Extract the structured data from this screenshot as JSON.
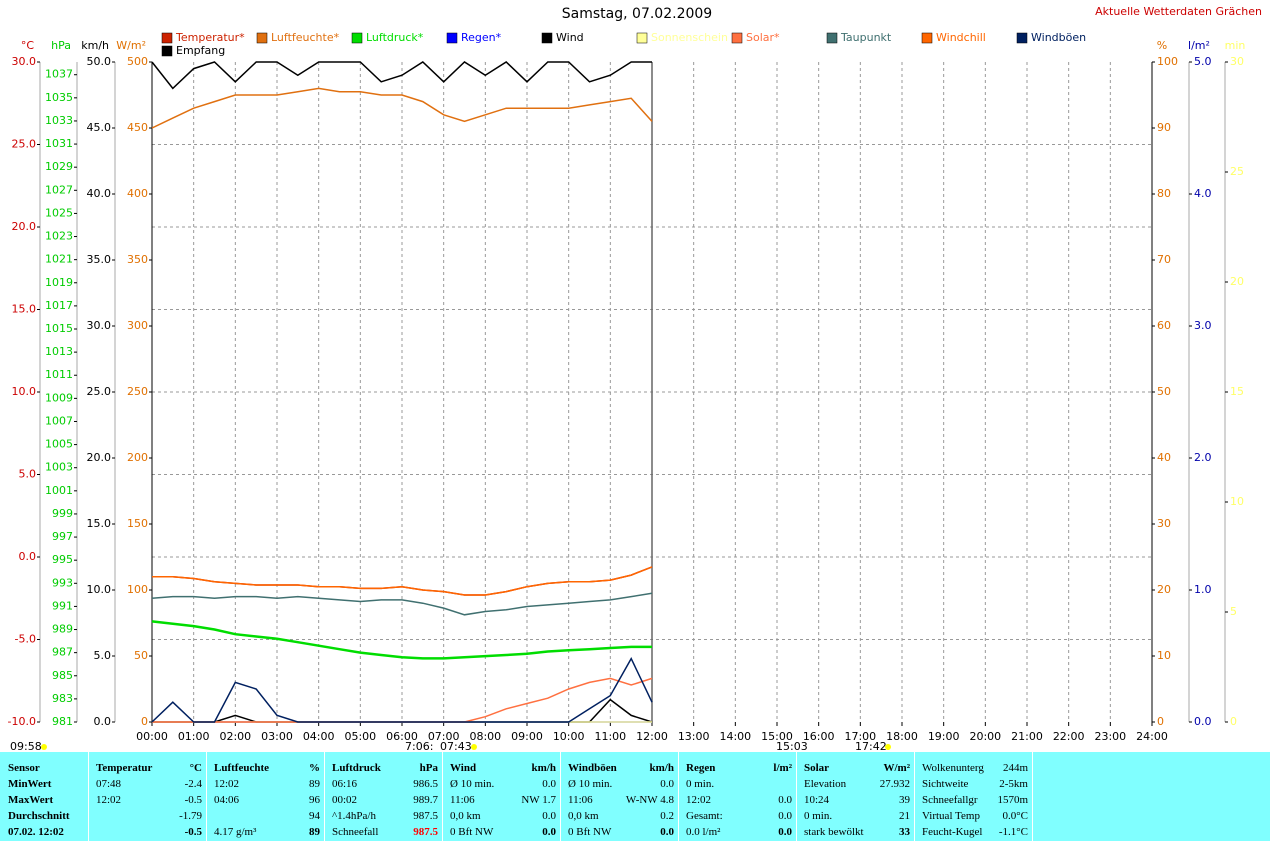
{
  "chart_data": {
    "type": "line",
    "title": "Samstag, 07.02.2009",
    "subtitle": "Aktuelle Wetterdaten Grächen",
    "xlim": [
      0,
      24
    ],
    "xticks": [
      {
        "value": 0,
        "label": "00:00"
      },
      {
        "value": 1,
        "label": "01:00"
      },
      {
        "value": 2,
        "label": "02:00"
      },
      {
        "value": 3,
        "label": "03:00"
      },
      {
        "value": 4,
        "label": "04:00"
      },
      {
        "value": 5,
        "label": "05:00"
      },
      {
        "value": 6,
        "label": "06:00"
      },
      {
        "value": 7,
        "label": "07:00"
      },
      {
        "value": 8,
        "label": "08:00"
      },
      {
        "value": 9,
        "label": "09:00"
      },
      {
        "value": 10,
        "label": "10:00"
      },
      {
        "value": 11,
        "label": "11:00"
      },
      {
        "value": 12,
        "label": "12:00"
      },
      {
        "value": 13,
        "label": "13:00"
      },
      {
        "value": 14,
        "label": "14:00"
      },
      {
        "value": 15,
        "label": "15:00"
      },
      {
        "value": 16,
        "label": "16:00"
      },
      {
        "value": 17,
        "label": "17:00"
      },
      {
        "value": 18,
        "label": "18:00"
      },
      {
        "value": 19,
        "label": "19:00"
      },
      {
        "value": 20,
        "label": "20:00"
      },
      {
        "value": 21,
        "label": "21:00"
      },
      {
        "value": 22,
        "label": "22:00"
      },
      {
        "value": 23,
        "label": "23:00"
      },
      {
        "value": 24,
        "label": "24:00"
      }
    ],
    "grid": true,
    "axes": [
      {
        "label": "°C",
        "color": "#cc0000",
        "side": "left",
        "lim": [
          -10,
          30
        ],
        "ticks": [
          {
            "value": 30,
            "label": "30.0"
          },
          {
            "value": 25,
            "label": "25.0"
          },
          {
            "value": 20,
            "label": "20.0"
          },
          {
            "value": 15,
            "label": "15.0"
          },
          {
            "value": 10,
            "label": "10.0"
          },
          {
            "value": 5,
            "label": "5.0"
          },
          {
            "value": 0,
            "label": "0.0"
          },
          {
            "value": -5,
            "label": "-5.0"
          },
          {
            "value": -10,
            "label": "-10.0"
          }
        ]
      },
      {
        "label": "hPa",
        "color": "#00cc00",
        "side": "left",
        "lim": [
          981,
          1038.1
        ],
        "ticks": [
          1037,
          1035,
          1033,
          1031,
          1029,
          1027,
          1025,
          1023,
          1021,
          1019,
          1017,
          1015,
          1013,
          1011,
          1009,
          1007,
          1005,
          1003,
          1001,
          999,
          997,
          995,
          993,
          991,
          989,
          987,
          985,
          983,
          981
        ]
      },
      {
        "label": "km/h",
        "color": "#000000",
        "side": "left",
        "lim": [
          0,
          50
        ],
        "ticks": [
          {
            "value": 50,
            "label": "50.0"
          },
          {
            "value": 45,
            "label": "45.0"
          },
          {
            "value": 40,
            "label": "40.0"
          },
          {
            "value": 35,
            "label": "35.0"
          },
          {
            "value": 30,
            "label": "30.0"
          },
          {
            "value": 25,
            "label": "25.0"
          },
          {
            "value": 20,
            "label": "20.0"
          },
          {
            "value": 15,
            "label": "15.0"
          },
          {
            "value": 10,
            "label": "10.0"
          },
          {
            "value": 5,
            "label": "5.0"
          },
          {
            "value": 0,
            "label": "0.0"
          }
        ]
      },
      {
        "label": "W/m²",
        "color": "#e07000",
        "side": "left",
        "lim": [
          0,
          500
        ],
        "ticks": [
          500,
          450,
          400,
          350,
          300,
          250,
          200,
          150,
          100,
          50,
          0
        ]
      },
      {
        "label": "%",
        "color": "#e07000",
        "side": "right",
        "lim": [
          0,
          100
        ],
        "ticks": [
          100,
          90,
          80,
          70,
          60,
          50,
          40,
          30,
          20,
          10,
          0
        ]
      },
      {
        "label": "l/m²",
        "color": "#0000aa",
        "side": "right",
        "lim": [
          0,
          5
        ],
        "ticks": [
          {
            "value": 5,
            "label": "5.0"
          },
          {
            "value": 4,
            "label": "4.0"
          },
          {
            "value": 3,
            "label": "3.0"
          },
          {
            "value": 2,
            "label": "2.0"
          },
          {
            "value": 1,
            "label": "1.0"
          },
          {
            "value": 0,
            "label": "0.0"
          }
        ]
      },
      {
        "label": "min",
        "color": "#ffff66",
        "side": "right",
        "lim": [
          0,
          30
        ],
        "ticks": [
          30,
          25,
          20,
          15,
          10,
          5,
          0
        ]
      }
    ],
    "x": [
      0,
      0.5,
      1,
      1.5,
      2,
      2.5,
      3,
      3.5,
      4,
      4.5,
      5,
      5.5,
      6,
      6.5,
      7,
      7.5,
      8,
      8.5,
      9,
      9.5,
      10,
      10.5,
      11,
      11.5,
      12
    ],
    "series": [
      {
        "name": "Temperatur*",
        "color": "#cc2200",
        "axis": 0,
        "values": [
          -1.2,
          -1.2,
          -1.3,
          -1.5,
          -1.6,
          -1.7,
          -1.7,
          -1.7,
          -1.8,
          -1.8,
          -1.9,
          -1.9,
          -1.8,
          -2.0,
          -2.1,
          -2.3,
          -2.3,
          -2.1,
          -1.8,
          -1.6,
          -1.5,
          -1.5,
          -1.4,
          -1.1,
          -0.6
        ]
      },
      {
        "name": "Luftfeuchte*",
        "color": "#e07010",
        "axis": 4,
        "values": [
          90,
          91.5,
          93,
          94,
          95,
          95,
          95,
          95.5,
          96,
          95.5,
          95.5,
          95,
          95,
          94,
          92,
          91,
          92,
          93,
          93,
          93,
          93,
          93.5,
          94,
          94.5,
          91
        ]
      },
      {
        "name": "Luftdruck*",
        "color": "#00dd00",
        "axis": 1,
        "values": [
          989.7,
          989.5,
          989.3,
          989.0,
          988.6,
          988.4,
          988.2,
          987.9,
          987.6,
          987.3,
          987.0,
          986.8,
          986.6,
          986.5,
          986.5,
          986.6,
          986.7,
          986.8,
          986.9,
          987.1,
          987.2,
          987.3,
          987.4,
          987.5,
          987.5
        ]
      },
      {
        "name": "Regen*",
        "color": "#0000ff",
        "axis": 5,
        "values": [
          0,
          0,
          0,
          0,
          0,
          0,
          0,
          0,
          0,
          0,
          0,
          0,
          0,
          0,
          0,
          0,
          0,
          0,
          0,
          0,
          0,
          0,
          0,
          0,
          0
        ]
      },
      {
        "name": "Wind",
        "color": "#000000",
        "axis": 2,
        "values": [
          0,
          0,
          0,
          0,
          0.5,
          0,
          0,
          0,
          0,
          0,
          0,
          0,
          0,
          0,
          0,
          0,
          0,
          0,
          0,
          0,
          0,
          0,
          1.7,
          0.5,
          0
        ]
      },
      {
        "name": "Sonnenschein",
        "color": "#ffff99",
        "axis": 6,
        "values": [
          0,
          0,
          0,
          0,
          0,
          0,
          0,
          0,
          0,
          0,
          0,
          0,
          0,
          0,
          0,
          0,
          0,
          0,
          0,
          0,
          0,
          0,
          0,
          0,
          0
        ]
      },
      {
        "name": "Solar*",
        "color": "#ff7040",
        "axis": 3,
        "values": [
          0,
          0,
          0,
          0,
          0,
          0,
          0,
          0,
          0,
          0,
          0,
          0,
          0,
          0,
          0,
          0,
          4,
          10,
          14,
          18,
          25,
          30,
          33,
          28,
          33
        ]
      },
      {
        "name": "Taupunkt",
        "color": "#407070",
        "axis": 0,
        "values": [
          -2.5,
          -2.4,
          -2.4,
          -2.5,
          -2.4,
          -2.4,
          -2.5,
          -2.4,
          -2.5,
          -2.6,
          -2.7,
          -2.6,
          -2.6,
          -2.8,
          -3.1,
          -3.5,
          -3.3,
          -3.2,
          -3.0,
          -2.9,
          -2.8,
          -2.7,
          -2.6,
          -2.4,
          -2.2
        ]
      },
      {
        "name": "Windchill",
        "color": "#ff6600",
        "axis": 0,
        "values": [
          -1.2,
          -1.2,
          -1.3,
          -1.5,
          -1.6,
          -1.7,
          -1.7,
          -1.7,
          -1.8,
          -1.8,
          -1.9,
          -1.9,
          -1.8,
          -2.0,
          -2.1,
          -2.3,
          -2.3,
          -2.1,
          -1.8,
          -1.6,
          -1.5,
          -1.5,
          -1.4,
          -1.1,
          -0.6
        ]
      },
      {
        "name": "Windböen",
        "color": "#002060",
        "axis": 2,
        "values": [
          0,
          1.5,
          0,
          0,
          3,
          2.5,
          0.5,
          0,
          0,
          0,
          0,
          0,
          0,
          0,
          0,
          0,
          0,
          0,
          0,
          0,
          0,
          1,
          2,
          4.8,
          1.5
        ]
      },
      {
        "name": "Empfang",
        "color": "#000000",
        "axis": 4,
        "values": [
          100,
          96,
          99,
          100,
          97,
          100,
          100,
          98,
          100,
          100,
          100,
          97,
          98,
          100,
          97,
          100,
          98,
          100,
          97,
          100,
          100,
          97,
          98,
          100,
          100
        ]
      }
    ],
    "annotations": [
      "09:58",
      "7:06:",
      "07:43",
      "15:03",
      "17:42"
    ]
  },
  "table": {
    "groups": [
      {
        "header": {
          "l": "Sensor"
        },
        "rows": [
          {
            "l": "MinWert"
          },
          {
            "l": "MaxWert"
          },
          {
            "l": "Durchschnitt"
          },
          {
            "l": "07.02. 12:02"
          }
        ]
      },
      {
        "header": {
          "l": "Temperatur",
          "r": "°C"
        },
        "rows": [
          {
            "l": "07:48",
            "r": "-2.4"
          },
          {
            "l": "12:02",
            "r": "-0.5"
          },
          {
            "r": "-1.79"
          },
          {
            "r": "-0.5"
          }
        ]
      },
      {
        "header": {
          "l": "Luftfeuchte",
          "r": "%"
        },
        "rows": [
          {
            "l": "12:02",
            "r": "89"
          },
          {
            "l": "04:06",
            "r": "96"
          },
          {
            "r": "94"
          },
          {
            "l": "4.17 g/m³",
            "r": "89"
          }
        ]
      },
      {
        "header": {
          "l": "Luftdruck",
          "r": "hPa"
        },
        "rows": [
          {
            "l": "06:16",
            "r": "986.5"
          },
          {
            "l": "00:02",
            "r": "989.7"
          },
          {
            "l": "^1.4hPa/h",
            "r": "987.5"
          },
          {
            "l": "Schneefall",
            "r": "987.5"
          }
        ]
      },
      {
        "header": {
          "l": "Wind",
          "r": "km/h"
        },
        "rows": [
          {
            "l": "Ø 10 min.",
            "r": "0.0"
          },
          {
            "l": "11:06",
            "r": "NW 1.7"
          },
          {
            "l": "0,0 km",
            "r": "0.0"
          },
          {
            "l": "0 Bft NW",
            "r": "0.0"
          }
        ]
      },
      {
        "header": {
          "l": "Windböen",
          "r": "km/h"
        },
        "rows": [
          {
            "l": "Ø 10 min.",
            "r": "0.0"
          },
          {
            "l": "11:06",
            "r": "W-NW 4.8"
          },
          {
            "l": "0,0 km",
            "r": "0.2"
          },
          {
            "l": "0 Bft NW",
            "r": "0.0"
          }
        ]
      },
      {
        "header": {
          "l": "Regen",
          "r": "l/m²"
        },
        "rows": [
          {
            "l": "0 min."
          },
          {
            "l": "12:02",
            "r": "0.0"
          },
          {
            "l": "Gesamt:",
            "r": "0.0"
          },
          {
            "l": "0.0 l/m²",
            "r": "0.0"
          }
        ]
      },
      {
        "header": {
          "l": "Solar",
          "r": "W/m²"
        },
        "rows": [
          {
            "l": "Elevation",
            "r": "27.932"
          },
          {
            "l": "10:24",
            "r": "39"
          },
          {
            "l": "0 min.",
            "r": "21"
          },
          {
            "l": "stark bewölkt",
            "r": "33"
          }
        ]
      },
      {
        "header": {
          "l": "Wolkenunterg",
          "r": "244m"
        },
        "rows": [
          {
            "l": "Sichtweite",
            "r": "2-5km"
          },
          {
            "l": "Schneefallgr",
            "r": "1570m"
          },
          {
            "l": "Virtual Temp",
            "r": "0.0°C"
          },
          {
            "l": "Feucht-Kugel",
            "r": "-1.1°C"
          }
        ]
      }
    ]
  }
}
